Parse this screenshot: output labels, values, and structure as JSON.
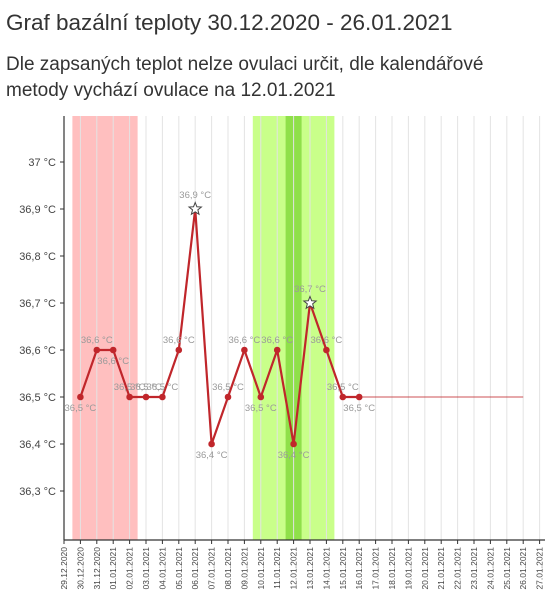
{
  "header": {
    "title": "Graf bazální teploty 30.12.2020 - 26.01.2021",
    "subtitle": "Dle zapsaných teplot nelze ovulaci určit, dle kalendářové metody vychází ovulace na 12.01.2021"
  },
  "colors": {
    "line": "#c0262b",
    "menstruation_band": "#ffbfbf",
    "fertile_band": "#c9ff8a",
    "ovulation_band": "#8fe04a",
    "grid": "#e3e3e3",
    "axis": "#333333",
    "value_label": "#9a9a9a"
  },
  "chart_data": {
    "type": "line",
    "x": [
      "29.12.2020",
      "30.12.2020",
      "31.12.2020",
      "01.01.2021",
      "02.01.2021",
      "03.01.2021",
      "04.01.2021",
      "05.01.2021",
      "06.01.2021",
      "07.01.2021",
      "08.01.2021",
      "09.01.2021",
      "10.01.2021",
      "11.01.2021",
      "12.01.2021",
      "13.01.2021",
      "14.01.2021",
      "15.01.2021",
      "16.01.2021",
      "17.01.2021",
      "18.01.2021",
      "19.01.2021",
      "20.01.2021",
      "21.01.2021",
      "22.01.2021",
      "23.01.2021",
      "24.01.2021",
      "25.01.2021",
      "26.01.2021",
      "27.01.2021"
    ],
    "ylim": [
      36.2,
      37.1
    ],
    "yticks": [
      36.3,
      36.4,
      36.5,
      36.6,
      36.7,
      36.8,
      36.9,
      37.0
    ],
    "ytick_labels": [
      "36,3 °C",
      "36,4 °C",
      "36,5 °C",
      "36,6 °C",
      "36,7 °C",
      "36,8 °C",
      "36,9 °C",
      "37 °C"
    ],
    "series": [
      {
        "values": [
          {
            "x": "30.12.2020",
            "y": 36.5,
            "label": "36,5 °C",
            "pos": "below"
          },
          {
            "x": "31.12.2020",
            "y": 36.6,
            "label": "36,6 °C",
            "pos": "above"
          },
          {
            "x": "01.01.2021",
            "y": 36.6,
            "label": "36,6 °C",
            "pos": "below"
          },
          {
            "x": "02.01.2021",
            "y": 36.5,
            "label": "36,5 °C",
            "pos": "above"
          },
          {
            "x": "03.01.2021",
            "y": 36.5,
            "label": "36,5 °C",
            "pos": "above"
          },
          {
            "x": "04.01.2021",
            "y": 36.5,
            "label": "36,5 °C",
            "pos": "above"
          },
          {
            "x": "05.01.2021",
            "y": 36.6,
            "label": "36,6 °C",
            "pos": "above"
          },
          {
            "x": "06.01.2021",
            "y": 36.9,
            "label": "36,9 °C",
            "pos": "above",
            "marker": "star"
          },
          {
            "x": "07.01.2021",
            "y": 36.4,
            "label": "36,4 °C",
            "pos": "below"
          },
          {
            "x": "08.01.2021",
            "y": 36.5,
            "label": "36,5 °C",
            "pos": "above"
          },
          {
            "x": "09.01.2021",
            "y": 36.6,
            "label": "36,6 °C",
            "pos": "above"
          },
          {
            "x": "10.01.2021",
            "y": 36.5,
            "label": "36,5 °C",
            "pos": "below"
          },
          {
            "x": "11.01.2021",
            "y": 36.6,
            "label": "36,6 °C",
            "pos": "above"
          },
          {
            "x": "12.01.2021",
            "y": 36.4,
            "label": "36,4 °C",
            "pos": "below"
          },
          {
            "x": "13.01.2021",
            "y": 36.7,
            "label": "36,7 °C",
            "pos": "above",
            "marker": "star"
          },
          {
            "x": "14.01.2021",
            "y": 36.6,
            "label": "36,6 °C",
            "pos": "above"
          },
          {
            "x": "15.01.2021",
            "y": 36.5,
            "label": "36,5 °C",
            "pos": "above"
          },
          {
            "x": "16.01.2021",
            "y": 36.5,
            "label": "36,5 °C",
            "pos": "below"
          }
        ]
      }
    ],
    "trend_line": {
      "from": "16.01.2021",
      "to": "26.01.2021",
      "y": 36.5
    },
    "bands": [
      {
        "from": "30.12.2020",
        "to": "02.01.2021",
        "kind": "menstruation"
      },
      {
        "from": "10.01.2021",
        "to": "14.01.2021",
        "kind": "fertile"
      },
      {
        "from": "12.01.2021",
        "to": "12.01.2021",
        "kind": "ovulation"
      }
    ],
    "grid": true,
    "legend": "none"
  }
}
